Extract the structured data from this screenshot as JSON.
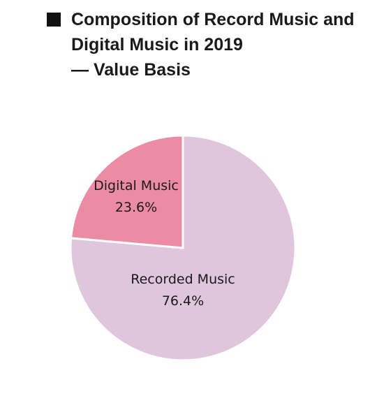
{
  "title_lines": [
    "Composition of Record Music and",
    "Digital Music in 2019",
    "— Value Basis"
  ],
  "chart_data": {
    "type": "pie",
    "title": "Composition of Record Music and Digital Music in 2019 — Value Basis",
    "start": "12 o'clock",
    "direction": "clockwise",
    "slices": [
      {
        "label": "Recorded Music",
        "value": 76.4,
        "value_label": "76.4%",
        "color": "#dfc6dd"
      },
      {
        "label": "Digital Music",
        "value": 23.6,
        "value_label": "23.6%",
        "color": "#ec8ca4"
      }
    ]
  }
}
